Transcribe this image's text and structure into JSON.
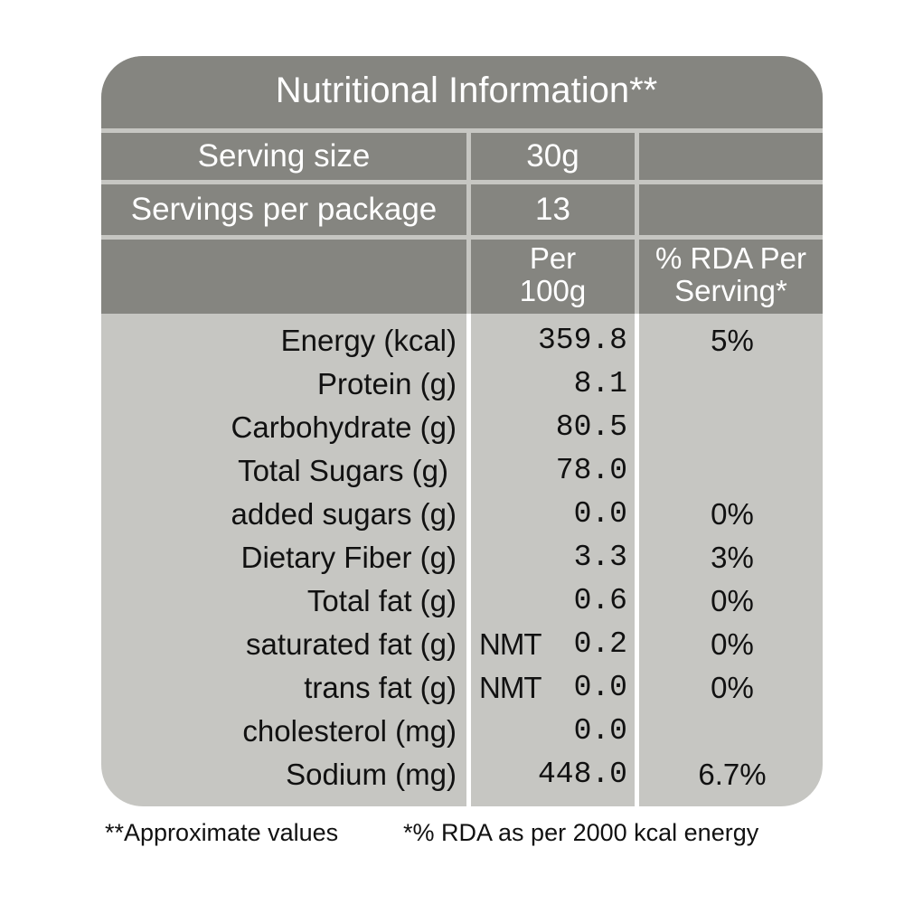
{
  "header": {
    "title": "Nutritional Information**",
    "serving_size_label": "Serving size",
    "serving_size_value": "30g",
    "servings_per_package_label": "Servings per package",
    "servings_per_package_value": "13",
    "col_per_100g_line1": "Per",
    "col_per_100g_line2": "100g",
    "col_rda_line1": "% RDA Per",
    "col_rda_line2": "Serving*"
  },
  "rows": [
    {
      "label": "Energy (kcal)",
      "prefix": "",
      "value": "359.8",
      "rda": "5%"
    },
    {
      "label": "Protein (g)",
      "prefix": "",
      "value": "8.1",
      "rda": ""
    },
    {
      "label": "Carbohydrate (g)",
      "prefix": "",
      "value": "80.5",
      "rda": ""
    },
    {
      "label": "Total Sugars (g)",
      "prefix": "",
      "value": "78.0",
      "rda": ""
    },
    {
      "label": "added sugars (g)",
      "prefix": "",
      "value": "0.0",
      "rda": "0%"
    },
    {
      "label": "Dietary Fiber (g)",
      "prefix": "",
      "value": "3.3",
      "rda": "3%"
    },
    {
      "label": "Total fat (g)",
      "prefix": "",
      "value": "0.6",
      "rda": "0%"
    },
    {
      "label": "saturated fat (g)",
      "prefix": "NMT",
      "value": "0.2",
      "rda": "0%"
    },
    {
      "label": "trans fat (g)",
      "prefix": "NMT",
      "value": "0.0",
      "rda": "0%"
    },
    {
      "label": "cholesterol (mg)",
      "prefix": "",
      "value": "0.0",
      "rda": ""
    },
    {
      "label": "Sodium (mg)",
      "prefix": "",
      "value": "448.0",
      "rda": "6.7%"
    }
  ],
  "footnotes": {
    "approximate": "**Approximate values",
    "rda_basis": "*% RDA as per 2000 kcal energy"
  },
  "colors": {
    "header_bg": "#858580",
    "body_bg": "#c6c6c2",
    "header_text": "#ffffff",
    "body_text": "#111111"
  }
}
